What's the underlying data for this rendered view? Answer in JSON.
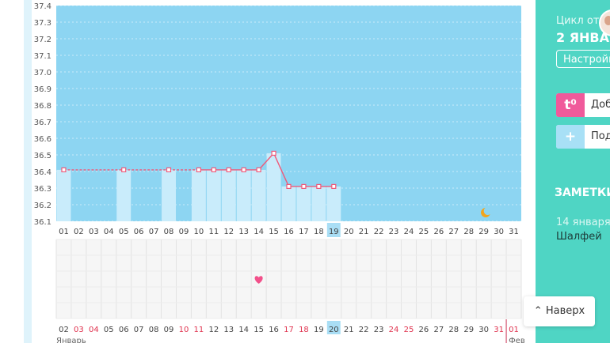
{
  "chart_data": {
    "type": "line",
    "y_ticks": [
      "37.4",
      "37.3",
      "37.2",
      "37.1",
      "37.0",
      "36.9",
      "36.8",
      "36.7",
      "36.6",
      "36.5",
      "36.4",
      "36.3",
      "36.2",
      "36.1"
    ],
    "ylim": [
      36.1,
      37.4
    ],
    "x_days": [
      "01",
      "02",
      "03",
      "04",
      "05",
      "06",
      "07",
      "08",
      "09",
      "10",
      "11",
      "12",
      "13",
      "14",
      "15",
      "16",
      "17",
      "18",
      "19",
      "20",
      "21",
      "22",
      "23",
      "24",
      "25",
      "26",
      "27",
      "28",
      "29",
      "30",
      "31"
    ],
    "highlighted_day": "19",
    "series": [
      {
        "values": [
          {
            "x": "01",
            "y": 36.41
          },
          {
            "x": "05",
            "y": 36.41
          },
          {
            "x": "08",
            "y": 36.41
          },
          {
            "x": "10",
            "y": 36.41
          },
          {
            "x": "11",
            "y": 36.41
          },
          {
            "x": "12",
            "y": 36.41
          },
          {
            "x": "13",
            "y": 36.41
          },
          {
            "x": "14",
            "y": 36.41
          },
          {
            "x": "15",
            "y": 36.51
          },
          {
            "x": "16",
            "y": 36.31
          },
          {
            "x": "17",
            "y": 36.31
          },
          {
            "x": "18",
            "y": 36.31
          },
          {
            "x": "19",
            "y": 36.31
          }
        ]
      }
    ],
    "dashed_segments": [
      [
        "01",
        "05"
      ],
      [
        "05",
        "08"
      ],
      [
        "08",
        "10"
      ]
    ],
    "colors": {
      "plot_bg": "#8dd5f2",
      "bar": "#c9ecfb",
      "line": "#ef5a7a",
      "moon": "#f2a51c",
      "heart": "#f2508a"
    }
  },
  "bottom_row": {
    "dates": [
      {
        "label": "02",
        "weekend": false
      },
      {
        "label": "03",
        "weekend": true
      },
      {
        "label": "04",
        "weekend": true
      },
      {
        "label": "05",
        "weekend": false
      },
      {
        "label": "06",
        "weekend": false
      },
      {
        "label": "07",
        "weekend": false
      },
      {
        "label": "08",
        "weekend": false
      },
      {
        "label": "09",
        "weekend": false
      },
      {
        "label": "10",
        "weekend": true
      },
      {
        "label": "11",
        "weekend": true
      },
      {
        "label": "12",
        "weekend": false
      },
      {
        "label": "13",
        "weekend": false
      },
      {
        "label": "14",
        "weekend": false
      },
      {
        "label": "15",
        "weekend": false
      },
      {
        "label": "16",
        "weekend": false
      },
      {
        "label": "17",
        "weekend": true
      },
      {
        "label": "18",
        "weekend": true
      },
      {
        "label": "19",
        "weekend": false
      },
      {
        "label": "20",
        "weekend": false
      },
      {
        "label": "21",
        "weekend": false
      },
      {
        "label": "22",
        "weekend": false
      },
      {
        "label": "23",
        "weekend": false
      },
      {
        "label": "24",
        "weekend": true
      },
      {
        "label": "25",
        "weekend": true
      },
      {
        "label": "26",
        "weekend": false
      },
      {
        "label": "27",
        "weekend": false
      },
      {
        "label": "28",
        "weekend": false
      },
      {
        "label": "29",
        "weekend": false
      },
      {
        "label": "30",
        "weekend": false
      },
      {
        "label": "31",
        "weekend": true
      },
      {
        "label": "01",
        "weekend": true
      }
    ],
    "highlighted": "20",
    "month_label": "Январь",
    "next_month_label": "Фев"
  },
  "markers": {
    "heart_day": "14",
    "moon_day": "29"
  },
  "sidebar": {
    "cycle_label": "Цикл от",
    "cycle_date": "2 ЯНВАР",
    "settings_label": "Настройк",
    "add_label": "Доб",
    "add_icon": "t⁰",
    "more_label": "Под",
    "more_icon": "+",
    "notes_title": "ЗАМЕТКИ",
    "note_date": "14 января 2",
    "note_text": "Шалфей"
  },
  "back_to_top": {
    "label": "Наверх"
  }
}
